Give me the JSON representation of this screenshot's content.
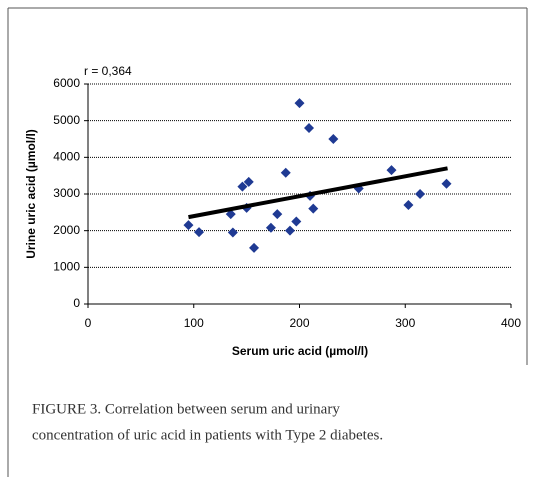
{
  "chart_data": {
    "type": "scatter",
    "annotation": "r = 0,364",
    "xlabel": "Serum uric acid (µmol/l)",
    "ylabel": "Urine uric acid (µmol/l)",
    "x": [
      95,
      105,
      135,
      137,
      146,
      150,
      152,
      157,
      173,
      179,
      187,
      191,
      197,
      200,
      209,
      210,
      213,
      232,
      256,
      287,
      303,
      314,
      339
    ],
    "values": [
      2150,
      1960,
      2450,
      1950,
      3200,
      2620,
      3330,
      1530,
      2080,
      2450,
      3580,
      2000,
      2250,
      5480,
      4800,
      2950,
      2600,
      4500,
      3150,
      3650,
      2700,
      3000,
      3280
    ],
    "color": "#1f3a93",
    "trendline": {
      "x": [
        95,
        340
      ],
      "y": [
        2370,
        3700
      ],
      "color": "#000000"
    },
    "xlim": [
      0,
      400
    ],
    "xticks": [
      0,
      100,
      200,
      300,
      400
    ],
    "ylim": [
      0,
      6000
    ],
    "yticks": [
      0,
      1000,
      2000,
      3000,
      4000,
      5000,
      6000
    ],
    "grid": true
  },
  "caption": [
    "FIGURE 3.  Correlation between serum and urinary",
    "concentration of uric acid in patients with Type 2 diabetes."
  ]
}
